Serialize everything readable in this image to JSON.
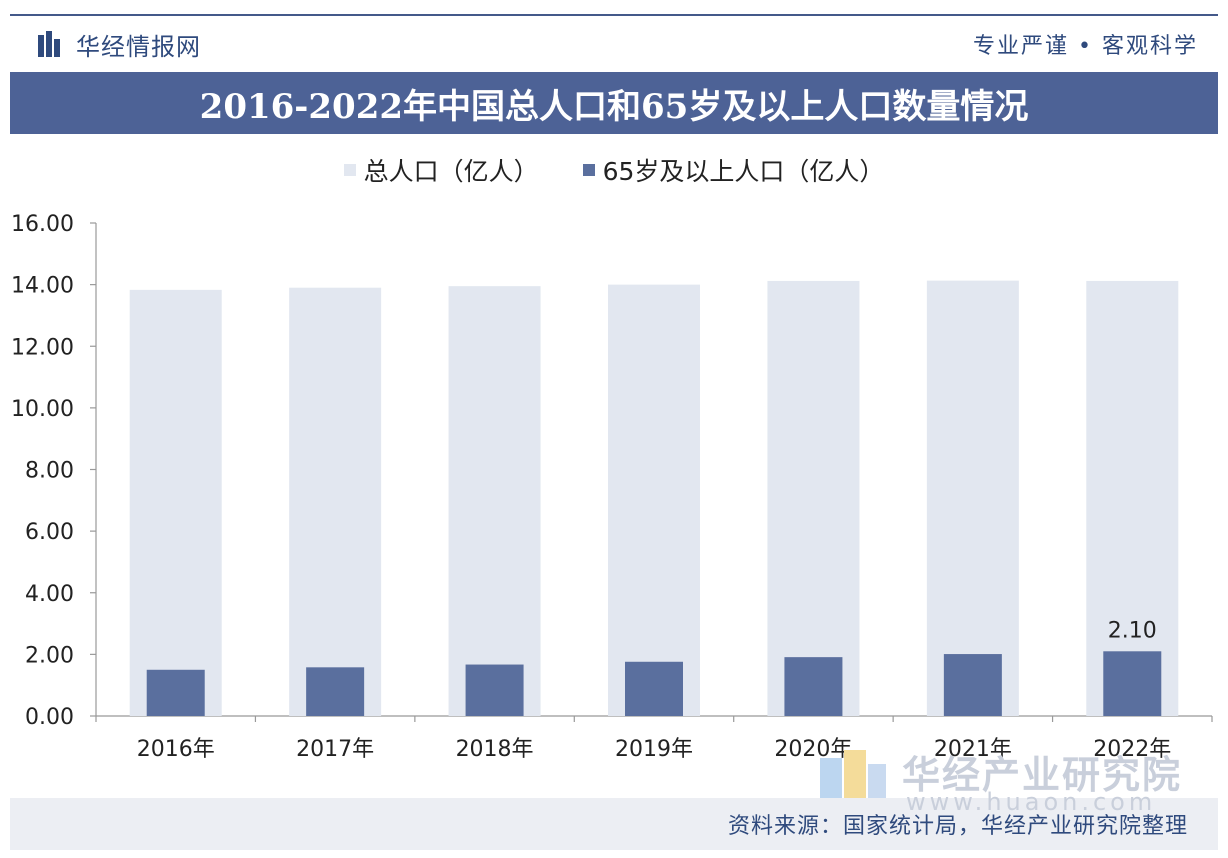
{
  "header": {
    "brand_name": "华经情报网",
    "slogan": "专业严谨 • 客观科学"
  },
  "title": "2016-2022年中国总人口和65岁及以上人口数量情况",
  "colors": {
    "header_bar": "#4d6296",
    "total_series": "#e2e7f0",
    "elderly_series": "#5a6f9e",
    "axis": "#888888"
  },
  "watermark": {
    "name": "华经产业研究院",
    "url": "www.huaon.com"
  },
  "source": "资料来源：国家统计局，华经产业研究院整理",
  "chart_data": {
    "type": "bar",
    "categories": [
      "2016年",
      "2017年",
      "2018年",
      "2019年",
      "2020年",
      "2021年",
      "2022年"
    ],
    "series": [
      {
        "name": "总人口（亿人）",
        "values": [
          13.83,
          13.9,
          13.95,
          14.0,
          14.12,
          14.13,
          14.12
        ]
      },
      {
        "name": "65岁及以上人口（亿人）",
        "values": [
          1.5,
          1.58,
          1.67,
          1.76,
          1.91,
          2.01,
          2.1
        ]
      }
    ],
    "ylim": [
      0,
      16
    ],
    "yticks": [
      "0.00",
      "2.00",
      "4.00",
      "6.00",
      "8.00",
      "10.00",
      "12.00",
      "14.00",
      "16.00"
    ],
    "data_labels": [
      {
        "series": 1,
        "index": 6,
        "text": "2.10"
      }
    ],
    "legend_position": "top",
    "grid": false
  }
}
